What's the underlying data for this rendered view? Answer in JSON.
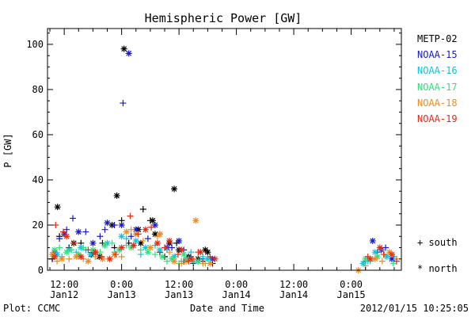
{
  "chart_data": {
    "type": "scatter",
    "title": "Hemispheric Power [GW]",
    "xlabel": "Date and Time",
    "ylabel": "P [GW]",
    "x_unit": "hours since Jan12 00:00",
    "xlim": [
      8.5,
      82.5
    ],
    "ylim": [
      0,
      107
    ],
    "yticks": [
      0,
      20,
      40,
      60,
      80,
      100
    ],
    "xticks": [
      {
        "x": 12,
        "time": "12:00",
        "date": "Jan12"
      },
      {
        "x": 24,
        "time": "0:00",
        "date": "Jan13"
      },
      {
        "x": 36,
        "time": "12:00",
        "date": "Jan13"
      },
      {
        "x": 48,
        "time": "0:00",
        "date": "Jan14"
      },
      {
        "x": 60,
        "time": "12:00",
        "date": "Jan14"
      },
      {
        "x": 72,
        "time": "0:00",
        "date": "Jan15"
      }
    ],
    "legend_position": "right",
    "markers": {
      "south": "+",
      "north": "*"
    },
    "series": [
      {
        "name": "METP-02",
        "color": "#000000",
        "north": [
          [
            10.6,
            28
          ],
          [
            14,
            12
          ],
          [
            17.7,
            7
          ],
          [
            19.3,
            6
          ],
          [
            22,
            20
          ],
          [
            23,
            33
          ],
          [
            24.5,
            98
          ],
          [
            27.5,
            18
          ],
          [
            28,
            12
          ],
          [
            30.5,
            22
          ],
          [
            31,
            16
          ],
          [
            34,
            12
          ],
          [
            35,
            36
          ],
          [
            36,
            9
          ],
          [
            38,
            6
          ],
          [
            40,
            5
          ],
          [
            41.5,
            9
          ],
          [
            42,
            8
          ]
        ],
        "south": [
          [
            9.5,
            5
          ],
          [
            11,
            15
          ],
          [
            13,
            10
          ],
          [
            15.5,
            12
          ],
          [
            18.5,
            8
          ],
          [
            20,
            12
          ],
          [
            22.5,
            10
          ],
          [
            24,
            22
          ],
          [
            25.5,
            12
          ],
          [
            28.5,
            27
          ],
          [
            30,
            22
          ],
          [
            32,
            8
          ],
          [
            33,
            6
          ],
          [
            35.5,
            12
          ],
          [
            37,
            4
          ],
          [
            39,
            3
          ],
          [
            41,
            4
          ],
          [
            43,
            3
          ]
        ]
      },
      {
        "name": "NOAA-15",
        "color": "#1a1acc",
        "north": [
          [
            10,
            8
          ],
          [
            12,
            16
          ],
          [
            15,
            17
          ],
          [
            18,
            12
          ],
          [
            21,
            21
          ],
          [
            24,
            20
          ],
          [
            25.5,
            96
          ],
          [
            27,
            18
          ],
          [
            31,
            20
          ],
          [
            33.5,
            10
          ],
          [
            36,
            13
          ],
          [
            40,
            4
          ],
          [
            43,
            5
          ],
          [
            76.5,
            13
          ],
          [
            78.3,
            9
          ],
          [
            80.5,
            5
          ]
        ],
        "south": [
          [
            11,
            14
          ],
          [
            12.5,
            18
          ],
          [
            13.8,
            23
          ],
          [
            16.5,
            17
          ],
          [
            19.5,
            15
          ],
          [
            20.5,
            18
          ],
          [
            22.5,
            20
          ],
          [
            24.3,
            74
          ],
          [
            26,
            15
          ],
          [
            29.5,
            14
          ],
          [
            32,
            16
          ],
          [
            34.5,
            10
          ],
          [
            37,
            9
          ],
          [
            38.5,
            6
          ],
          [
            41,
            5
          ],
          [
            75,
            4
          ],
          [
            77.5,
            8
          ],
          [
            79.2,
            10
          ],
          [
            81,
            5
          ]
        ]
      },
      {
        "name": "NOAA-16",
        "color": "#11c4d8",
        "north": [
          [
            10.5,
            7
          ],
          [
            13,
            9
          ],
          [
            15.5,
            10
          ],
          [
            17.5,
            7
          ],
          [
            21,
            12
          ],
          [
            24,
            15
          ],
          [
            27,
            13
          ],
          [
            29,
            10
          ],
          [
            32,
            9
          ],
          [
            35,
            6
          ],
          [
            37.5,
            5
          ],
          [
            39,
            4
          ],
          [
            42,
            5
          ],
          [
            74.5,
            3
          ],
          [
            77,
            8
          ],
          [
            79.5,
            6
          ]
        ],
        "south": [
          [
            11.5,
            6
          ],
          [
            14.5,
            8
          ],
          [
            16.5,
            9
          ],
          [
            19,
            7
          ],
          [
            22.5,
            8
          ],
          [
            25,
            14
          ],
          [
            28,
            7
          ],
          [
            31,
            11
          ],
          [
            33.5,
            9
          ],
          [
            36.5,
            4
          ],
          [
            38.5,
            8
          ],
          [
            41,
            6
          ],
          [
            75.5,
            4
          ],
          [
            78,
            9
          ],
          [
            81,
            6
          ]
        ]
      },
      {
        "name": "NOAA-17",
        "color": "#2ee27a",
        "north": [
          [
            10,
            9
          ],
          [
            12.5,
            8
          ],
          [
            15,
            7
          ],
          [
            18,
            9
          ],
          [
            20.5,
            11
          ],
          [
            23.5,
            9
          ],
          [
            26,
            10
          ],
          [
            29.5,
            8
          ],
          [
            32.5,
            6
          ],
          [
            34.5,
            5
          ],
          [
            37,
            7
          ],
          [
            40,
            4
          ],
          [
            75,
            5
          ],
          [
            77.5,
            6
          ]
        ],
        "south": [
          [
            11,
            10
          ],
          [
            13.5,
            9
          ],
          [
            16,
            10
          ],
          [
            19.5,
            8
          ],
          [
            22,
            12
          ],
          [
            25,
            11
          ],
          [
            28,
            9
          ],
          [
            31,
            7
          ],
          [
            33.5,
            4
          ],
          [
            36,
            3
          ],
          [
            38,
            5
          ],
          [
            41.5,
            3
          ],
          [
            76,
            4
          ],
          [
            79,
            7
          ],
          [
            80.8,
            3
          ]
        ]
      },
      {
        "name": "NOAA-18",
        "color": "#f08a1c",
        "north": [
          [
            9.5,
            7
          ],
          [
            11.5,
            5
          ],
          [
            14.5,
            6
          ],
          [
            17,
            4
          ],
          [
            20,
            5
          ],
          [
            22.5,
            7
          ],
          [
            25,
            17
          ],
          [
            27,
            16
          ],
          [
            30,
            10
          ],
          [
            32,
            16
          ],
          [
            35,
            4
          ],
          [
            37.5,
            4
          ],
          [
            39.5,
            22
          ],
          [
            42.5,
            3
          ],
          [
            73.5,
            0
          ],
          [
            77,
            5
          ],
          [
            80,
            8
          ]
        ],
        "south": [
          [
            10.5,
            4
          ],
          [
            13,
            5
          ],
          [
            16,
            5
          ],
          [
            18.5,
            6
          ],
          [
            21.5,
            5
          ],
          [
            24,
            6
          ],
          [
            26,
            18
          ],
          [
            28.5,
            13
          ],
          [
            31.5,
            15
          ],
          [
            34,
            8
          ],
          [
            36.5,
            3
          ],
          [
            39,
            5
          ],
          [
            41,
            3
          ],
          [
            75,
            2
          ],
          [
            78.5,
            4
          ],
          [
            81.5,
            5
          ]
        ]
      },
      {
        "name": "NOAA-19",
        "color": "#e02c10",
        "north": [
          [
            10,
            6
          ],
          [
            12.5,
            15
          ],
          [
            15.5,
            6
          ],
          [
            18.5,
            8
          ],
          [
            21.5,
            5
          ],
          [
            24,
            10
          ],
          [
            26.5,
            11
          ],
          [
            29,
            18
          ],
          [
            31.5,
            12
          ],
          [
            34,
            13
          ],
          [
            36.5,
            9
          ],
          [
            38.5,
            5
          ],
          [
            40.5,
            8
          ],
          [
            43.5,
            5
          ],
          [
            76,
            5
          ],
          [
            78,
            10
          ],
          [
            80.5,
            7
          ]
        ],
        "south": [
          [
            10.2,
            20
          ],
          [
            11.8,
            17
          ],
          [
            14,
            12
          ],
          [
            17,
            9
          ],
          [
            19.8,
            6
          ],
          [
            22.8,
            7
          ],
          [
            25.8,
            24
          ],
          [
            27.5,
            16
          ],
          [
            30.2,
            19
          ],
          [
            33,
            10
          ],
          [
            35.8,
            7
          ],
          [
            38,
            4
          ],
          [
            40,
            8
          ],
          [
            42.5,
            6
          ],
          [
            75.5,
            6
          ],
          [
            78.8,
            7
          ],
          [
            81.5,
            4
          ]
        ]
      }
    ]
  },
  "legend": {
    "items": [
      {
        "label": "METP-02",
        "color": "#000000"
      },
      {
        "label": "NOAA-15",
        "color": "#1a1acc"
      },
      {
        "label": "NOAA-16",
        "color": "#11c4d8"
      },
      {
        "label": "NOAA-17",
        "color": "#2ee27a"
      },
      {
        "label": "NOAA-18",
        "color": "#f08a1c"
      },
      {
        "label": "NOAA-19",
        "color": "#e02c10"
      }
    ],
    "south_label": "+ south",
    "north_label": "* north"
  },
  "footer": {
    "left": "Plot: CCMC",
    "right": "2012/01/15 10:25:05"
  }
}
